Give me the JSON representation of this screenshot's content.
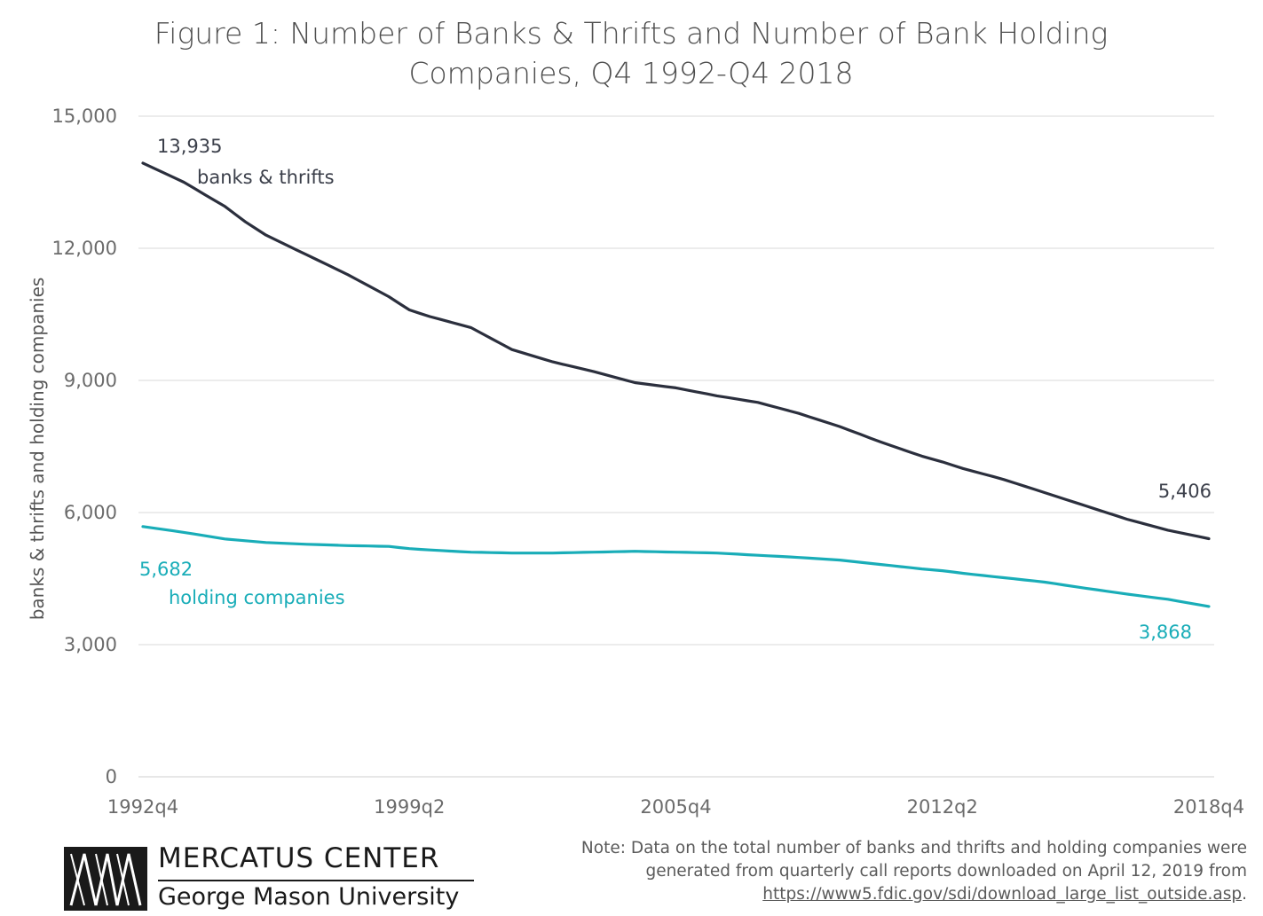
{
  "chart_data": {
    "type": "line",
    "title_lines": [
      "Figure 1: Number of Banks & Thrifts and Number of Bank Holding",
      "Companies, Q4 1992-Q4 2018"
    ],
    "ylabel": "banks & thrifts and holding companies",
    "ylim": [
      0,
      15000
    ],
    "y_ticks": [
      0,
      3000,
      6000,
      9000,
      12000,
      15000
    ],
    "y_tick_labels": [
      "0",
      "3,000",
      "6,000",
      "9,000",
      "12,000",
      "15,000"
    ],
    "x_start": "1992q4",
    "x_end": "2018q4",
    "x_ticks": [
      "1992q4",
      "1999q2",
      "2005q4",
      "2012q2",
      "2018q4"
    ],
    "grid": true,
    "series": [
      {
        "name": "banks & thrifts",
        "color": "#2b2f3d",
        "key": [
          [
            "1992q4",
            13935
          ],
          [
            "1993q4",
            13500
          ],
          [
            "1994q4",
            12950
          ],
          [
            "1995q2",
            12600
          ],
          [
            "1995q4",
            12300
          ],
          [
            "1996q4",
            11850
          ],
          [
            "1997q4",
            11400
          ],
          [
            "1998q4",
            10900
          ],
          [
            "1999q2",
            10600
          ],
          [
            "1999q4",
            10450
          ],
          [
            "2000q4",
            10200
          ],
          [
            "2001q4",
            9700
          ],
          [
            "2002q4",
            9420
          ],
          [
            "2003q4",
            9200
          ],
          [
            "2004q4",
            8950
          ],
          [
            "2005q4",
            8830
          ],
          [
            "2006q4",
            8650
          ],
          [
            "2007q4",
            8500
          ],
          [
            "2008q4",
            8250
          ],
          [
            "2009q4",
            7950
          ],
          [
            "2010q4",
            7600
          ],
          [
            "2011q4",
            7280
          ],
          [
            "2012q2",
            7150
          ],
          [
            "2012q4",
            7000
          ],
          [
            "2013q4",
            6750
          ],
          [
            "2014q4",
            6450
          ],
          [
            "2015q4",
            6150
          ],
          [
            "2016q4",
            5850
          ],
          [
            "2017q4",
            5600
          ],
          [
            "2018q4",
            5406
          ]
        ]
      },
      {
        "name": "holding companies",
        "color": "#19adb8",
        "key": [
          [
            "1992q4",
            5682
          ],
          [
            "1993q4",
            5550
          ],
          [
            "1994q4",
            5400
          ],
          [
            "1995q4",
            5320
          ],
          [
            "1996q4",
            5280
          ],
          [
            "1997q4",
            5250
          ],
          [
            "1998q4",
            5230
          ],
          [
            "1999q2",
            5180
          ],
          [
            "1999q4",
            5150
          ],
          [
            "2000q4",
            5100
          ],
          [
            "2001q4",
            5080
          ],
          [
            "2002q4",
            5080
          ],
          [
            "2003q4",
            5100
          ],
          [
            "2004q4",
            5120
          ],
          [
            "2005q4",
            5100
          ],
          [
            "2006q4",
            5080
          ],
          [
            "2007q4",
            5030
          ],
          [
            "2008q4",
            4980
          ],
          [
            "2009q4",
            4920
          ],
          [
            "2010q4",
            4820
          ],
          [
            "2011q4",
            4720
          ],
          [
            "2012q2",
            4680
          ],
          [
            "2012q4",
            4620
          ],
          [
            "2013q4",
            4520
          ],
          [
            "2014q4",
            4420
          ],
          [
            "2015q4",
            4280
          ],
          [
            "2016q4",
            4150
          ],
          [
            "2017q4",
            4030
          ],
          [
            "2018q4",
            3868
          ]
        ]
      }
    ],
    "annotations": [
      {
        "text": "13,935",
        "color": "#3b3f4a",
        "size": 21
      },
      {
        "text": "banks & thrifts",
        "color": "#3b3f4a",
        "size": 21
      },
      {
        "text": "5,406",
        "color": "#3b3f4a",
        "size": 22
      },
      {
        "text": "5,682",
        "color": "#19adb8",
        "size": 21
      },
      {
        "text": "holding companies",
        "color": "#19adb8",
        "size": 21
      },
      {
        "text": "3,868",
        "color": "#19adb8",
        "size": 21
      }
    ]
  },
  "note": {
    "line1": "Note: Data on the total number of banks and thrifts and holding companies were",
    "line2": "generated from quarterly call reports downloaded on April 12, 2019 from",
    "link": "https://www5.fdic.gov/sdi/download_large_list_outside.asp",
    "link_suffix": "."
  },
  "logo": {
    "name": "MERCATUS CENTER",
    "subtitle": "George Mason University"
  }
}
